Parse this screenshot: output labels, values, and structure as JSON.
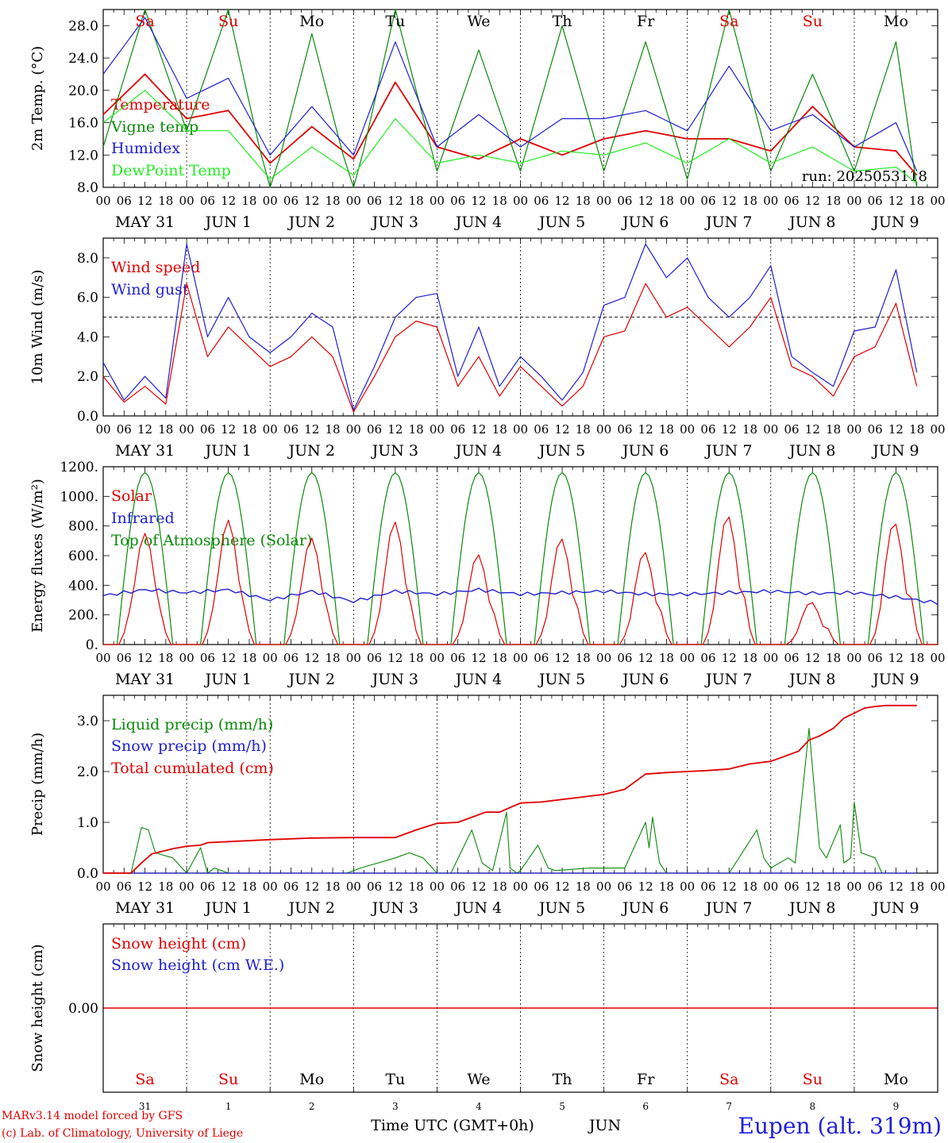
{
  "chart_data": [
    {
      "type": "line",
      "ylabel": "2m Temp. (°C)",
      "ylim": [
        8,
        30
      ],
      "yticks": [
        "8.0",
        "12.0",
        "16.0",
        "20.0",
        "24.0",
        "28.0"
      ],
      "legend_placement": "top-left",
      "annotation": "run: 2025053118",
      "x": [
        0,
        12,
        24,
        36,
        48,
        60,
        72,
        84,
        96,
        108,
        120,
        132,
        144,
        156,
        168,
        180,
        192,
        204,
        216,
        228,
        234
      ],
      "series": [
        {
          "name": "Temperature",
          "color": "#e00000",
          "values": [
            17,
            22,
            16.5,
            17.5,
            11,
            15.5,
            11.5,
            21,
            13,
            11.5,
            14,
            12,
            14,
            15,
            14,
            14,
            12.5,
            18,
            13,
            12.5,
            9.5
          ]
        },
        {
          "name": "Vigne temp",
          "color": "#0a8a0a",
          "values": [
            13,
            30,
            15,
            30,
            7,
            27,
            7,
            30,
            10,
            25,
            10,
            28,
            10,
            26,
            9,
            30,
            10,
            22,
            10,
            26,
            8
          ]
        },
        {
          "name": "Humidex",
          "color": "#2020d0",
          "values": [
            22,
            29,
            19,
            21.5,
            12,
            18,
            12,
            26,
            13,
            17,
            13,
            16.5,
            16.5,
            17.5,
            15,
            23,
            15,
            17,
            13,
            16,
            10
          ]
        },
        {
          "name": "DewPoint Temp",
          "color": "#22ee22",
          "values": [
            16,
            20,
            15,
            15,
            9,
            13,
            9.5,
            16.5,
            11,
            12,
            11,
            12.5,
            12,
            13.5,
            11,
            14,
            11,
            13,
            10,
            10.5,
            8.5
          ]
        }
      ]
    },
    {
      "type": "line",
      "ylabel": "10m Wind (m/s)",
      "ylim": [
        0,
        9
      ],
      "yticks": [
        "0.0",
        "2.0",
        "4.0",
        "6.0",
        "8.0"
      ],
      "reference_line": 5,
      "legend_placement": "top-left",
      "x": [
        0,
        6,
        12,
        18,
        24,
        30,
        36,
        42,
        48,
        54,
        60,
        66,
        72,
        78,
        84,
        90,
        96,
        102,
        108,
        114,
        120,
        126,
        132,
        138,
        144,
        150,
        156,
        162,
        168,
        174,
        180,
        186,
        192,
        198,
        204,
        210,
        216,
        222,
        228,
        234
      ],
      "series": [
        {
          "name": "Wind speed",
          "color": "#e00000",
          "values": [
            2,
            0.7,
            1.5,
            0.6,
            6.7,
            3,
            4.5,
            3.5,
            2.5,
            3,
            4,
            3,
            0.2,
            2,
            4,
            4.8,
            4.5,
            1.5,
            3,
            1,
            2.5,
            1.5,
            0.5,
            1.5,
            4,
            4.3,
            6.7,
            5,
            5.5,
            4.5,
            3.5,
            4.5,
            6,
            2.5,
            2,
            1,
            3,
            3.5,
            5.7,
            1.5
          ]
        },
        {
          "name": "Wind gust",
          "color": "#2020d0",
          "values": [
            2.7,
            0.8,
            2,
            0.9,
            8.7,
            4,
            6,
            4,
            3.2,
            4,
            5.2,
            4.5,
            0.3,
            2.5,
            5,
            6,
            6.2,
            2,
            4.5,
            1.5,
            3,
            2,
            0.8,
            2.2,
            5.6,
            6,
            8.7,
            7,
            8,
            6,
            5,
            6,
            7.6,
            3,
            2.2,
            1.5,
            4.3,
            4.5,
            7.4,
            2.2
          ]
        }
      ]
    },
    {
      "type": "line",
      "ylabel": "Energy fluxes (W/m²)",
      "ylim": [
        0,
        1200
      ],
      "yticks": [
        "0.",
        "200.",
        "400.",
        "600.",
        "800.",
        "1000.",
        "1200."
      ],
      "legend_placement": "top-left",
      "solar_daily_peaks": [
        750,
        840,
        720,
        830,
        610,
        720,
        630,
        880,
        290,
        840
      ],
      "series": [
        {
          "name": "Solar",
          "color": "#e00000"
        },
        {
          "name": "Infrared",
          "color": "#2020d0",
          "values": [
            330,
            370,
            350,
            370,
            300,
            360,
            290,
            360,
            340,
            370,
            340,
            350,
            360,
            340,
            340,
            350,
            360,
            345,
            350,
            320,
            280
          ]
        },
        {
          "name": "Top of Atmosphere (Solar)",
          "color": "#0a8a0a",
          "peak": 1160,
          "day_length_h": 16
        }
      ]
    },
    {
      "type": "line",
      "ylabel": "Precip (mm/h)",
      "ylim": [
        0,
        3.5
      ],
      "yticks": [
        "0.0",
        "1.0",
        "2.0",
        "3.0"
      ],
      "legend_placement": "top-left",
      "series": [
        {
          "name": "Liquid precip (mm/h)",
          "color": "#0a8a0a",
          "x": [
            0,
            8,
            11,
            13,
            15,
            20,
            24,
            28,
            30,
            32,
            34,
            36,
            70,
            74,
            84,
            88,
            92,
            96,
            100,
            106,
            109,
            112,
            120,
            116,
            117,
            119,
            125,
            128,
            130,
            140,
            146,
            150,
            156,
            157,
            158,
            160,
            162,
            164,
            170,
            180,
            188,
            190,
            192,
            197,
            199,
            203,
            206,
            208,
            212,
            213,
            215,
            216,
            218,
            222,
            224,
            234
          ],
          "values": [
            0,
            0,
            0.9,
            0.85,
            0.4,
            0.3,
            0,
            0.5,
            0,
            0.1,
            0.05,
            0,
            0,
            0.1,
            0.3,
            0.4,
            0.3,
            0,
            0,
            0.85,
            0.2,
            0.05,
            0.05,
            1.2,
            0.1,
            0,
            0.55,
            0.1,
            0.05,
            0.1,
            0.1,
            0.1,
            1,
            0.5,
            1.1,
            0.2,
            0,
            0,
            0,
            0,
            0.85,
            0.3,
            0.1,
            0.3,
            0.2,
            2.85,
            0.5,
            0.3,
            0.95,
            0.2,
            0.3,
            1.4,
            0.4,
            0.3,
            0,
            0
          ]
        },
        {
          "name": "Snow precip (mm/h)",
          "color": "#2020d0",
          "x": [
            0,
            234
          ],
          "values": [
            0,
            0
          ]
        },
        {
          "name": "Total cumulated (cm)",
          "color": "#e00000",
          "x": [
            0,
            8,
            11,
            14,
            17,
            20,
            24,
            28,
            30,
            36,
            48,
            60,
            72,
            84,
            90,
            96,
            102,
            106,
            110,
            114,
            120,
            126,
            132,
            138,
            144,
            150,
            156,
            162,
            168,
            174,
            180,
            186,
            192,
            196,
            200,
            203,
            206,
            210,
            213,
            216,
            219,
            222,
            225,
            234
          ],
          "values": [
            0,
            0,
            0.2,
            0.38,
            0.43,
            0.48,
            0.53,
            0.55,
            0.6,
            0.62,
            0.66,
            0.69,
            0.7,
            0.7,
            0.85,
            0.98,
            1,
            1.1,
            1.2,
            1.2,
            1.38,
            1.4,
            1.45,
            1.5,
            1.55,
            1.65,
            1.95,
            1.98,
            2,
            2.02,
            2.05,
            2.15,
            2.2,
            2.3,
            2.4,
            2.62,
            2.7,
            2.85,
            3.05,
            3.15,
            3.25,
            3.28,
            3.3,
            3.3
          ]
        }
      ]
    },
    {
      "type": "line",
      "ylabel": "Snow height (cm)",
      "yticks": [
        "0.00"
      ],
      "legend_placement": "top-left",
      "series": [
        {
          "name": "Snow height (cm)",
          "color": "#e00000",
          "x": [
            0,
            234
          ],
          "values": [
            0,
            0
          ]
        },
        {
          "name": "Snow height (cm W.E.)",
          "color": "#2020d0"
        }
      ]
    }
  ],
  "axes": {
    "days": [
      {
        "short": "Sa",
        "weekend": true,
        "date": "MAY 31",
        "num": "31"
      },
      {
        "short": "Su",
        "weekend": true,
        "date": "JUN  1",
        "num": "1"
      },
      {
        "short": "Mo",
        "weekend": false,
        "date": "JUN  2",
        "num": "2"
      },
      {
        "short": "Tu",
        "weekend": false,
        "date": "JUN  3",
        "num": "3"
      },
      {
        "short": "We",
        "weekend": false,
        "date": "JUN  4",
        "num": "4"
      },
      {
        "short": "Th",
        "weekend": false,
        "date": "JUN  5",
        "num": "5"
      },
      {
        "short": "Fr",
        "weekend": false,
        "date": "JUN  6",
        "num": "6"
      },
      {
        "short": "Sa",
        "weekend": true,
        "date": "JUN  7",
        "num": "7"
      },
      {
        "short": "Su",
        "weekend": true,
        "date": "JUN  8",
        "num": "8"
      },
      {
        "short": "Mo",
        "weekend": false,
        "date": "JUN  9",
        "num": "9"
      }
    ],
    "hour_ticks": [
      "00",
      "06",
      "12",
      "18"
    ],
    "xlabel": "Time UTC (GMT+0h)",
    "month": "JUN"
  },
  "colors": {
    "weekend": "#e00000",
    "weekday": "#000000"
  },
  "footer": {
    "model_credit": "MARv3.14 model forced by GFS",
    "copyright": "(c) Lab. of Climatology, University of Liege",
    "station": "Eupen (alt. 319m)"
  }
}
